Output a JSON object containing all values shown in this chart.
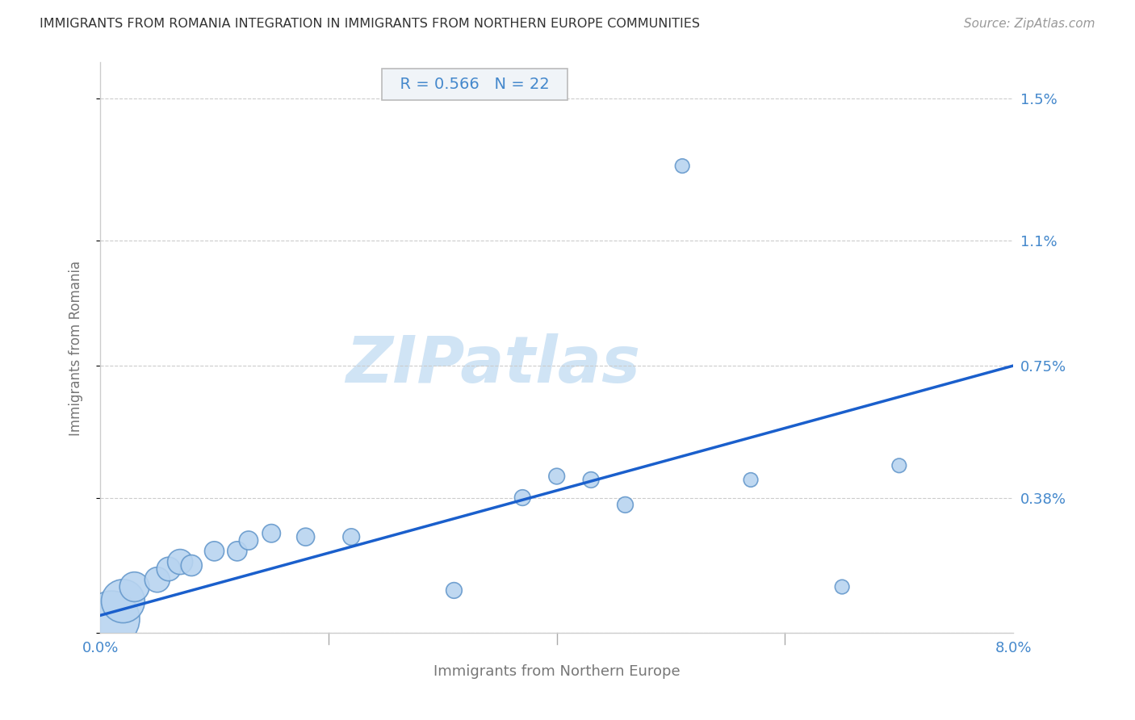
{
  "title": "IMMIGRANTS FROM ROMANIA INTEGRATION IN IMMIGRANTS FROM NORTHERN EUROPE COMMUNITIES",
  "source": "Source: ZipAtlas.com",
  "xlabel": "Immigrants from Northern Europe",
  "ylabel": "Immigrants from Romania",
  "R": 0.566,
  "N": 22,
  "xlim": [
    0.0,
    0.08
  ],
  "ylim": [
    0.0,
    0.016
  ],
  "ytick_positions": [
    0.0,
    0.0038,
    0.0075,
    0.011,
    0.015
  ],
  "ytick_labels": [
    "",
    "0.38%",
    "0.75%",
    "1.1%",
    "1.5%"
  ],
  "xtick_positions": [
    0.0,
    0.02,
    0.04,
    0.06,
    0.08
  ],
  "xtick_labels": [
    "0.0%",
    "",
    "",
    "",
    "8.0%"
  ],
  "scatter_x": [
    0.001,
    0.002,
    0.003,
    0.005,
    0.006,
    0.007,
    0.008,
    0.01,
    0.012,
    0.013,
    0.015,
    0.018,
    0.022,
    0.031,
    0.037,
    0.04,
    0.043,
    0.046,
    0.051,
    0.057,
    0.065,
    0.07
  ],
  "scatter_y": [
    0.0004,
    0.0009,
    0.0013,
    0.0015,
    0.0018,
    0.002,
    0.0019,
    0.0023,
    0.0023,
    0.0026,
    0.0028,
    0.0027,
    0.0027,
    0.0012,
    0.0038,
    0.0044,
    0.0043,
    0.0036,
    0.0131,
    0.0043,
    0.0013,
    0.0047
  ],
  "scatter_sizes": [
    2500,
    1500,
    700,
    500,
    450,
    500,
    350,
    300,
    300,
    280,
    260,
    250,
    220,
    200,
    200,
    200,
    200,
    200,
    160,
    160,
    160,
    160
  ],
  "regression_x0": 0.0,
  "regression_y0": 0.0005,
  "regression_x1": 0.08,
  "regression_y1": 0.0075,
  "scatter_color": "#b8d4f0",
  "scatter_edge_color": "#6699cc",
  "line_color": "#1a5fcc",
  "background_color": "#ffffff",
  "grid_color": "#cccccc",
  "title_color": "#333333",
  "axis_label_color": "#777777",
  "tick_label_color": "#4488cc",
  "stats_box_facecolor": "#f0f4f8",
  "stats_box_edgecolor": "#bbbbbb",
  "watermark_color": "#d0e4f5",
  "watermark_text": "ZIPatlas",
  "source_color": "#999999"
}
